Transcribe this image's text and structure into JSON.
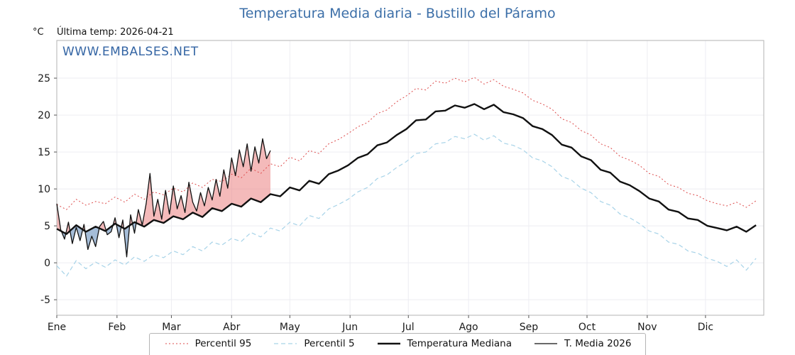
{
  "title": "Temperatura Media diaria - Bustillo del Páramo",
  "header": {
    "y_unit": "°C",
    "last_temp": "Última temp: 2026-04-21"
  },
  "watermark": "WWW.EMBALSES.NET",
  "chart_data": {
    "type": "line",
    "title": "Temperatura Media diaria - Bustillo del Páramo",
    "xlabel": "",
    "ylabel": "°C",
    "ylim": [
      -7.1,
      30.1
    ],
    "yticks": [
      -5,
      0,
      5,
      10,
      15,
      20,
      25
    ],
    "months": [
      "Ene",
      "Feb",
      "Mar",
      "Abr",
      "May",
      "Jun",
      "Jul",
      "Ago",
      "Sep",
      "Oct",
      "Nov",
      "Dic"
    ],
    "month_start_days": [
      1,
      32,
      60,
      91,
      121,
      152,
      182,
      213,
      244,
      274,
      305,
      335
    ],
    "grid": true,
    "legend_position": "bottom",
    "fill_between": {
      "series_a": "T. Media 2026",
      "series_b": "Temperatura Mediana",
      "above_color": "rgba(235,130,130,0.55)",
      "below_color": "rgba(105,145,190,0.6)"
    },
    "series": [
      {
        "name": "Percentil 95",
        "color": "#dd4b4b",
        "style": "dotted",
        "x_start": 1,
        "x_step": 5,
        "values": [
          7.9,
          7.2,
          8.6,
          7.8,
          8.3,
          8.0,
          8.9,
          8.2,
          9.3,
          8.6,
          9.6,
          9.2,
          10.1,
          9.6,
          10.8,
          10.2,
          11.3,
          11.0,
          12.0,
          11.5,
          12.8,
          12.1,
          13.4,
          13.0,
          14.3,
          13.8,
          15.2,
          14.8,
          16.1,
          16.7,
          17.5,
          18.4,
          19.0,
          20.2,
          20.7,
          21.8,
          22.6,
          23.6,
          23.4,
          24.6,
          24.3,
          25.0,
          24.5,
          25.1,
          24.2,
          24.8,
          23.9,
          23.5,
          23.0,
          22.0,
          21.5,
          20.8,
          19.5,
          19.0,
          17.9,
          17.3,
          16.1,
          15.6,
          14.4,
          13.9,
          13.2,
          12.1,
          11.7,
          10.6,
          10.2,
          9.4,
          9.1,
          8.4,
          8.0,
          7.7,
          8.2,
          7.5,
          8.4
        ]
      },
      {
        "name": "Percentil 5",
        "color": "#a7d3e8",
        "style": "dashed",
        "x_start": 1,
        "x_step": 5,
        "values": [
          -0.4,
          -1.8,
          0.3,
          -0.8,
          0.1,
          -0.6,
          0.4,
          -0.3,
          0.8,
          0.2,
          1.1,
          0.7,
          1.6,
          1.1,
          2.2,
          1.6,
          2.8,
          2.4,
          3.3,
          2.9,
          4.1,
          3.5,
          4.7,
          4.3,
          5.5,
          5.0,
          6.4,
          6.0,
          7.3,
          7.9,
          8.6,
          9.6,
          10.2,
          11.4,
          11.9,
          12.9,
          13.7,
          14.8,
          15.0,
          16.1,
          16.3,
          17.1,
          16.8,
          17.4,
          16.6,
          17.2,
          16.2,
          15.9,
          15.3,
          14.2,
          13.8,
          13.0,
          11.7,
          11.2,
          10.1,
          9.5,
          8.3,
          7.8,
          6.6,
          6.1,
          5.3,
          4.3,
          3.9,
          2.8,
          2.5,
          1.6,
          1.3,
          0.6,
          0.2,
          -0.5,
          0.4,
          -1.0,
          0.6
        ]
      },
      {
        "name": "Temperatura Mediana",
        "color": "#111111",
        "style": "solid-thick",
        "x_start": 1,
        "x_step": 5,
        "values": [
          4.6,
          3.9,
          5.1,
          4.2,
          4.9,
          4.3,
          5.3,
          4.6,
          5.5,
          4.9,
          5.8,
          5.4,
          6.3,
          5.9,
          6.8,
          6.2,
          7.4,
          7.0,
          8.0,
          7.6,
          8.7,
          8.2,
          9.3,
          9.0,
          10.2,
          9.8,
          11.1,
          10.7,
          12.0,
          12.5,
          13.2,
          14.2,
          14.7,
          15.9,
          16.3,
          17.3,
          18.1,
          19.3,
          19.4,
          20.5,
          20.6,
          21.3,
          21.0,
          21.5,
          20.8,
          21.4,
          20.4,
          20.1,
          19.6,
          18.5,
          18.1,
          17.3,
          16.0,
          15.6,
          14.4,
          13.9,
          12.6,
          12.2,
          11.0,
          10.5,
          9.7,
          8.7,
          8.3,
          7.2,
          6.9,
          6.0,
          5.8,
          5.0,
          4.7,
          4.4,
          4.9,
          4.2,
          5.1
        ]
      },
      {
        "name": "T. Media 2026",
        "color": "#111111",
        "style": "solid-thin",
        "x_start": 1,
        "x_step": 2,
        "values": [
          8.0,
          4.5,
          3.2,
          5.5,
          2.6,
          4.8,
          3.0,
          5.2,
          1.8,
          3.6,
          2.2,
          4.9,
          5.6,
          3.8,
          4.2,
          6.1,
          3.4,
          5.8,
          0.8,
          6.5,
          4.0,
          7.2,
          5.1,
          8.0,
          12.1,
          6.3,
          8.6,
          5.9,
          9.8,
          6.6,
          10.4,
          7.3,
          9.1,
          6.8,
          10.9,
          8.2,
          7.0,
          9.5,
          7.7,
          10.2,
          8.5,
          11.3,
          9.0,
          12.6,
          10.1,
          14.2,
          11.8,
          15.3,
          13.0,
          16.1,
          12.4,
          15.7,
          13.5,
          16.8,
          14.1,
          15.2
        ]
      }
    ]
  }
}
